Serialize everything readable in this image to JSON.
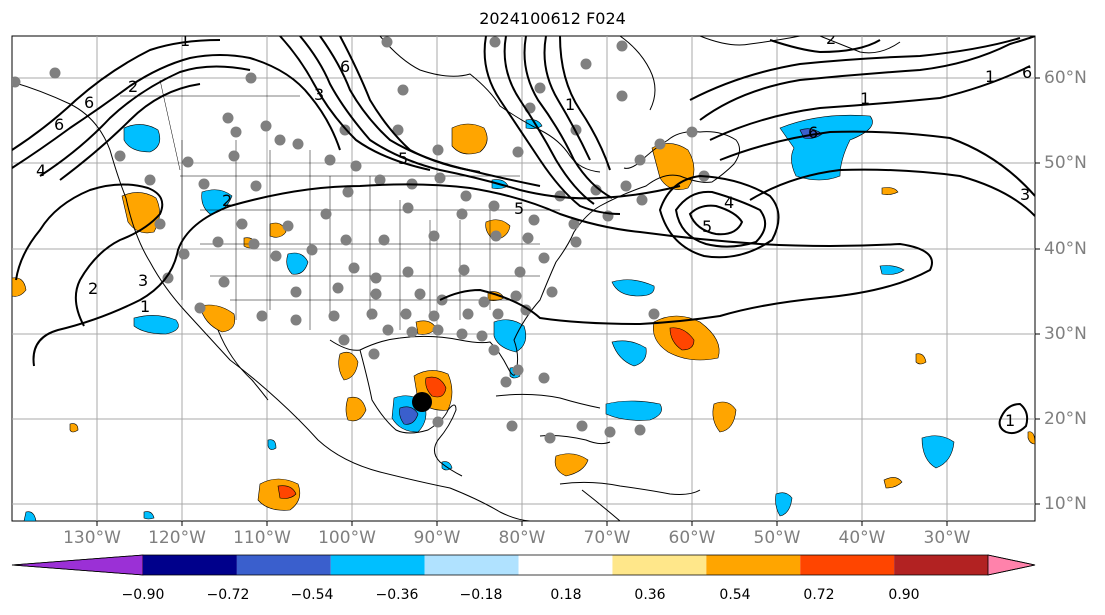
{
  "title": "2024100612 F024",
  "lon_labels": [
    "130°W",
    "120°W",
    "110°W",
    "100°W",
    "90°W",
    "80°W",
    "70°W",
    "60°W",
    "50°W",
    "40°W",
    "30°W"
  ],
  "lat_labels": [
    "60°N",
    "50°N",
    "40°N",
    "30°N",
    "20°N",
    "10°N"
  ],
  "colorbar": {
    "labels": [
      "−0.90",
      "−0.72",
      "−0.54",
      "−0.36",
      "−0.18",
      "0.18",
      "0.36",
      "0.54",
      "0.72",
      "0.90"
    ],
    "colors": [
      "#9b30d6",
      "#00008b",
      "#3a5fcd",
      "#00bfff",
      "#b0e2ff",
      "#ffffff",
      "#ffe78a",
      "#ffa500",
      "#ff4500",
      "#b22222",
      "#ff82ab"
    ]
  },
  "contour_labels": [
    "1",
    "1",
    "1",
    "1",
    "1",
    "1",
    "2",
    "2",
    "2",
    "2",
    "3",
    "3",
    "3",
    "4",
    "4",
    "5",
    "5",
    "5",
    "6",
    "6",
    "6",
    "6",
    "6"
  ],
  "colors": {
    "gridline": "#a9a9a9",
    "axis_label": "#7f7f7f",
    "station_dot": "#808080",
    "contour": "#000000",
    "storm_marker": "#000000"
  }
}
